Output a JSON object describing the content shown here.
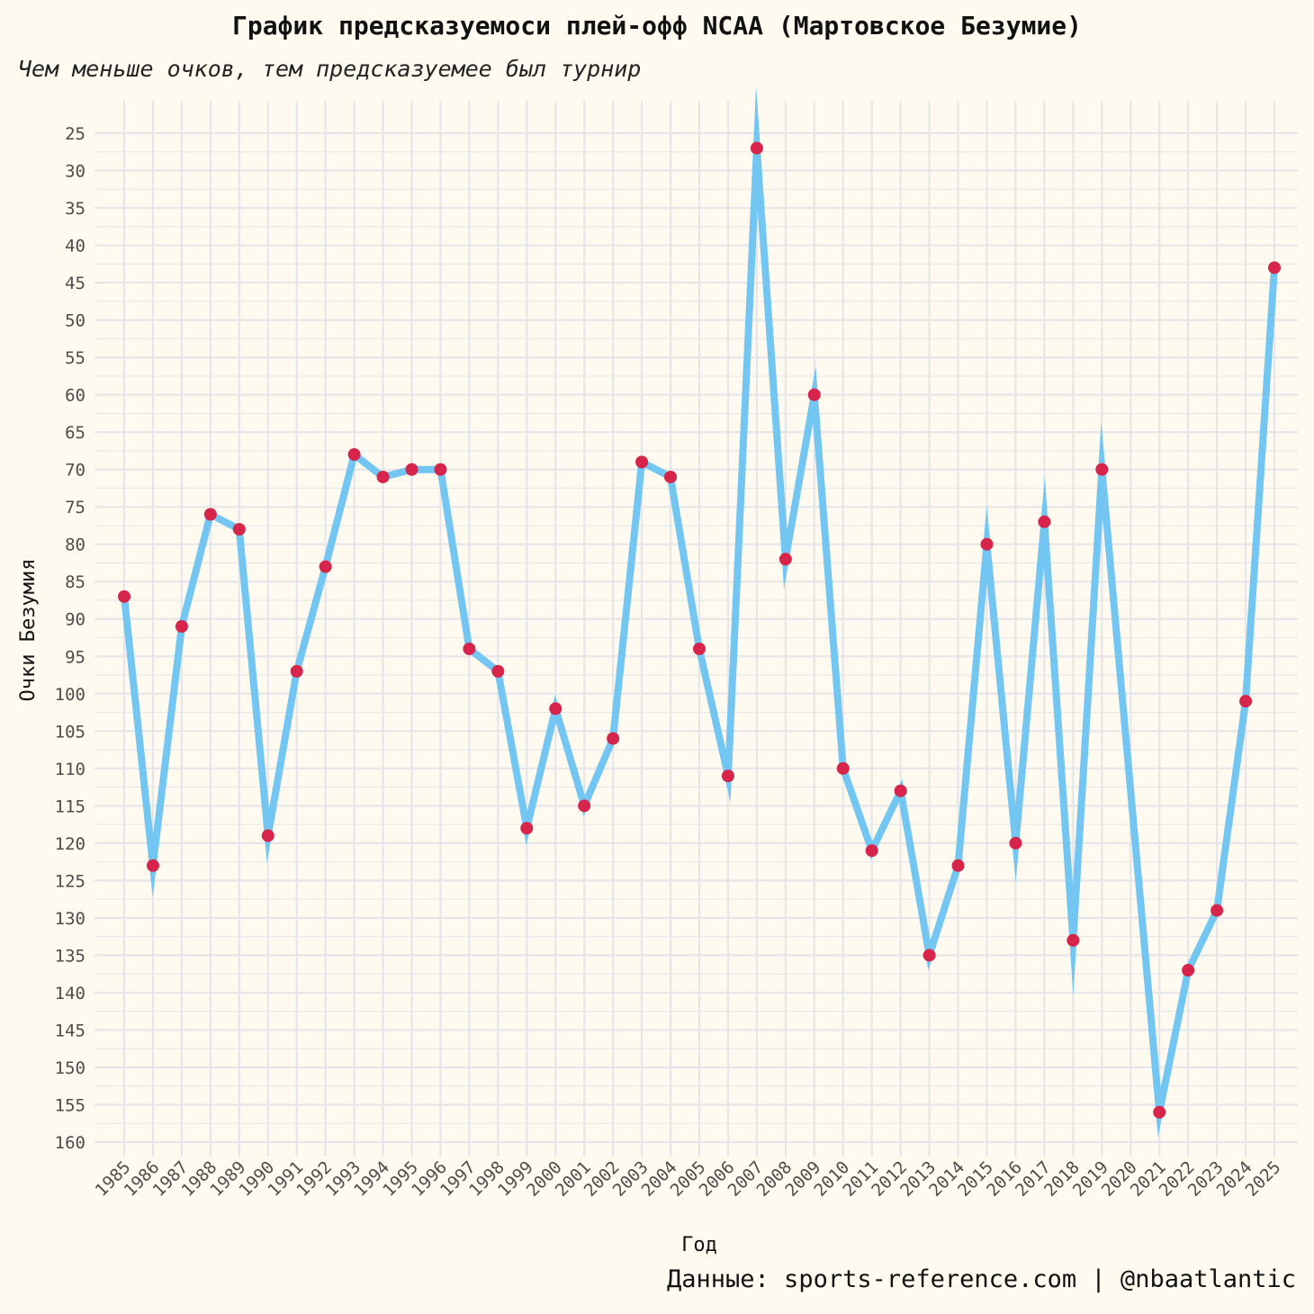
{
  "header": {
    "title": "График предсказуемоси плей-офф NCAA (Мартовское Безумие)",
    "subtitle": "Чем меньше очков, тем предсказуемее был турнир"
  },
  "caption": "Данные: sports-reference.com | @nbaatlantic",
  "colors": {
    "background": "#fefaf0",
    "grid": "#e6e6ea",
    "line": "#74c6f2",
    "points": "#d6244a"
  },
  "chart_data": {
    "type": "line",
    "xlabel": "Год",
    "ylabel": "Очки Безумия",
    "y_reversed": true,
    "ylim": [
      25,
      160
    ],
    "yticks": [
      25,
      30,
      35,
      40,
      45,
      50,
      55,
      60,
      65,
      70,
      75,
      80,
      85,
      90,
      95,
      100,
      105,
      110,
      115,
      120,
      125,
      130,
      135,
      140,
      145,
      150,
      155,
      160
    ],
    "xticks": [
      1985,
      1986,
      1987,
      1988,
      1989,
      1990,
      1991,
      1992,
      1993,
      1994,
      1995,
      1996,
      1997,
      1998,
      1999,
      2000,
      2001,
      2002,
      2003,
      2004,
      2005,
      2006,
      2007,
      2008,
      2009,
      2010,
      2011,
      2012,
      2013,
      2014,
      2015,
      2016,
      2017,
      2018,
      2019,
      2020,
      2021,
      2022,
      2023,
      2024,
      2025
    ],
    "x": [
      1985,
      1986,
      1987,
      1988,
      1989,
      1990,
      1991,
      1992,
      1993,
      1994,
      1995,
      1996,
      1997,
      1998,
      1999,
      2000,
      2001,
      2002,
      2003,
      2004,
      2005,
      2006,
      2007,
      2008,
      2009,
      2010,
      2011,
      2012,
      2013,
      2014,
      2015,
      2016,
      2017,
      2018,
      2019,
      2021,
      2022,
      2023,
      2024,
      2025
    ],
    "y": [
      87,
      123,
      91,
      76,
      78,
      119,
      97,
      83,
      68,
      71,
      70,
      70,
      94,
      97,
      118,
      102,
      115,
      106,
      69,
      71,
      94,
      111,
      27,
      82,
      60,
      110,
      121,
      113,
      135,
      123,
      80,
      120,
      77,
      133,
      70,
      156,
      137,
      129,
      101,
      43
    ],
    "grid": true
  }
}
